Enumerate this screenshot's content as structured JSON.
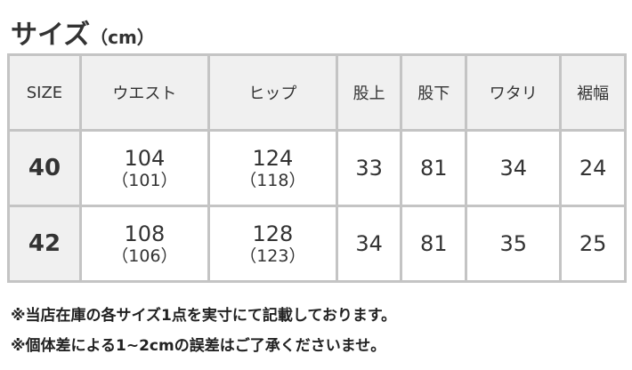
{
  "title": "サイズ",
  "unit": "（cm）",
  "headers": [
    "SIZE",
    "ウエスト",
    "ヒップ",
    "股上",
    "股下",
    "ワタリ",
    "裾幅"
  ],
  "rows": [
    {
      "size": "40",
      "waist": "104",
      "waist_sub": "（101）",
      "hip": "124",
      "hip_sub": "（118）",
      "rise": "33",
      "inseam": "81",
      "thigh": "34",
      "hem": "24"
    },
    {
      "size": "42",
      "waist": "108",
      "waist_sub": "（106）",
      "hip": "128",
      "hip_sub": "（123）",
      "rise": "34",
      "inseam": "81",
      "thigh": "35",
      "hem": "25"
    }
  ],
  "notes": [
    "※当店在庫の各サイズ1点を実寸にて記載しております。",
    "※個体差による1~2cmの誤差はご了承くださいませ。"
  ]
}
